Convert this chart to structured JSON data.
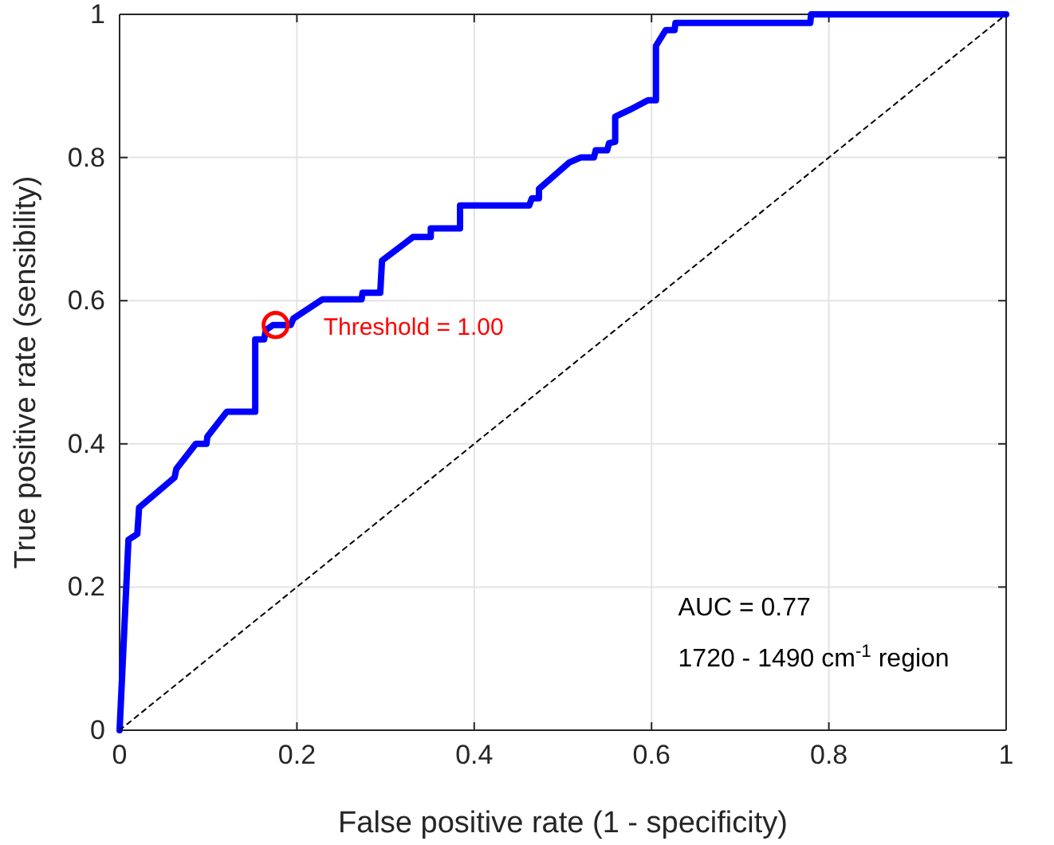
{
  "chart_data": {
    "type": "line",
    "xlabel": "False positive rate (1 - specificity)",
    "ylabel": "True positive rate (sensibility)",
    "xlim": [
      0,
      1
    ],
    "ylim": [
      0,
      1
    ],
    "xticks": [
      0,
      0.2,
      0.4,
      0.6,
      0.8,
      1
    ],
    "yticks": [
      0,
      0.2,
      0.4,
      0.6,
      0.8,
      1
    ],
    "grid": true,
    "series": [
      {
        "color": "#0000ff",
        "x": [
          0,
          0.01,
          0.02,
          0.022,
          0.062,
          0.064,
          0.086,
          0.098,
          0.099,
          0.121,
          0.153,
          0.153,
          0.163,
          0.165,
          0.173,
          0.193,
          0.196,
          0.229,
          0.273,
          0.274,
          0.294,
          0.296,
          0.331,
          0.351,
          0.351,
          0.384,
          0.384,
          0.462,
          0.465,
          0.473,
          0.473,
          0.507,
          0.52,
          0.535,
          0.537,
          0.55,
          0.552,
          0.559,
          0.559,
          0.576,
          0.596,
          0.605,
          0.605,
          0.616,
          0.626,
          0.627,
          0.779,
          0.78,
          1
        ],
        "values": [
          0,
          0.266,
          0.274,
          0.311,
          0.353,
          0.365,
          0.4,
          0.4,
          0.41,
          0.445,
          0.445,
          0.546,
          0.546,
          0.559,
          0.566,
          0.566,
          0.575,
          0.602,
          0.602,
          0.611,
          0.611,
          0.656,
          0.689,
          0.689,
          0.701,
          0.701,
          0.733,
          0.733,
          0.743,
          0.743,
          0.756,
          0.793,
          0.8,
          0.8,
          0.81,
          0.81,
          0.82,
          0.822,
          0.857,
          0.867,
          0.88,
          0.88,
          0.956,
          0.978,
          0.978,
          0.988,
          0.988,
          1,
          1
        ]
      },
      {
        "type": "line",
        "color": "#000000",
        "line_style": "dotted",
        "x": [
          0,
          1
        ],
        "values": [
          0,
          1
        ]
      },
      {
        "type": "scatter",
        "color": "#ff0000",
        "marker": "circle",
        "x": [
          0.176
        ],
        "values": [
          0.566
        ]
      }
    ],
    "annotations": [
      {
        "text": "Threshold = 1.00",
        "x": 0.176,
        "y": 0.566
      },
      "AUC = 0.77",
      "1720 - 1490 cm$^{-1}$ region"
    ]
  }
}
